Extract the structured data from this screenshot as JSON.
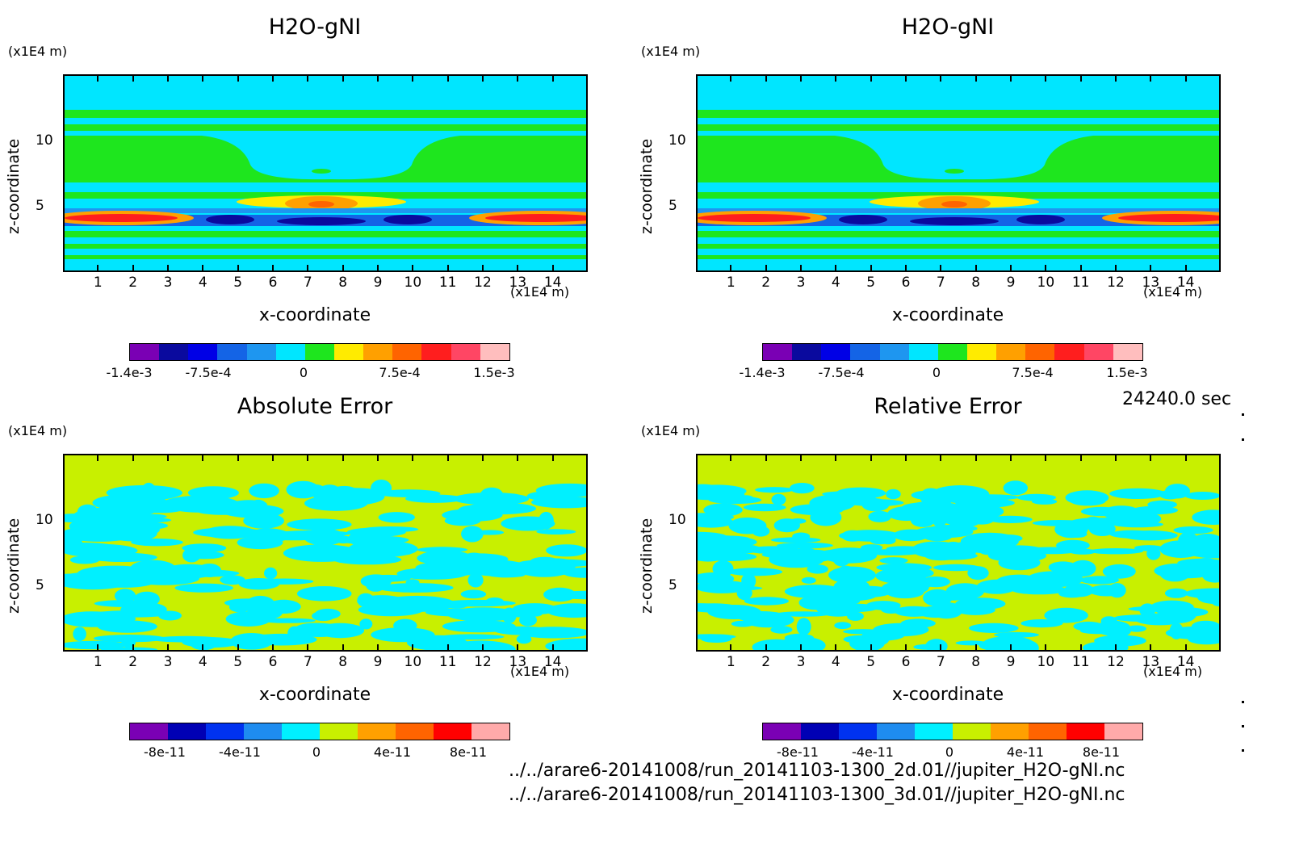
{
  "panels": [
    {
      "id": "h2o-2d",
      "title": "H2O-gNI",
      "z_unit": "(x1E4 m)",
      "x_unit": "(x1E4 m)",
      "z_label": "z-coordinate",
      "x_label": "x-coordinate",
      "x_ticks": [
        "1",
        "2",
        "3",
        "4",
        "5",
        "6",
        "7",
        "8",
        "9",
        "10",
        "11",
        "12",
        "13",
        "14"
      ],
      "z_ticks": [
        "10",
        "5"
      ],
      "colorbar_labels": [
        "-1.4e-3",
        "-7.5e-4",
        "0",
        "7.5e-4",
        "1.5e-3"
      ],
      "colorbar_colors": [
        "#7a00b4",
        "#0a0a9e",
        "#0000e6",
        "#1464e6",
        "#1e96f0",
        "#00e6ff",
        "#1ee61e",
        "#ffeb00",
        "#ffa000",
        "#ff6400",
        "#ff1e1e",
        "#ff4664",
        "#ffbebe"
      ],
      "style": "field"
    },
    {
      "id": "h2o-3d",
      "title": "H2O-gNI",
      "z_unit": "(x1E4 m)",
      "x_unit": "(x1E4 m)",
      "z_label": "z-coordinate",
      "x_label": "x-coordinate",
      "x_ticks": [
        "1",
        "2",
        "3",
        "4",
        "5",
        "6",
        "7",
        "8",
        "9",
        "10",
        "11",
        "12",
        "13",
        "14"
      ],
      "z_ticks": [
        "10",
        "5"
      ],
      "colorbar_labels": [
        "-1.4e-3",
        "-7.5e-4",
        "0",
        "7.5e-4",
        "1.5e-3"
      ],
      "colorbar_colors": [
        "#7a00b4",
        "#0a0a9e",
        "#0000e6",
        "#1464e6",
        "#1e96f0",
        "#00e6ff",
        "#1ee61e",
        "#ffeb00",
        "#ffa000",
        "#ff6400",
        "#ff1e1e",
        "#ff4664",
        "#ffbebe"
      ],
      "style": "field"
    },
    {
      "id": "abs-error",
      "title": "Absolute Error",
      "z_unit": "(x1E4 m)",
      "x_unit": "(x1E4 m)",
      "z_label": "z-coordinate",
      "x_label": "x-coordinate",
      "x_ticks": [
        "1",
        "2",
        "3",
        "4",
        "5",
        "6",
        "7",
        "8",
        "9",
        "10",
        "11",
        "12",
        "13",
        "14"
      ],
      "z_ticks": [
        "10",
        "5"
      ],
      "colorbar_labels": [
        "-8e-11",
        "-4e-11",
        "0",
        "4e-11",
        "8e-11"
      ],
      "colorbar_colors": [
        "#7a00b4",
        "#0000b4",
        "#0032f0",
        "#1e8cf0",
        "#00f0ff",
        "#c8f000",
        "#ffa000",
        "#ff6400",
        "#ff0000",
        "#ffaaaa"
      ],
      "style": "noise"
    },
    {
      "id": "rel-error",
      "title": "Relative Error",
      "z_unit": "(x1E4 m)",
      "x_unit": "(x1E4 m)",
      "z_label": "z-coordinate",
      "x_label": "x-coordinate",
      "x_ticks": [
        "1",
        "2",
        "3",
        "4",
        "5",
        "6",
        "7",
        "8",
        "9",
        "10",
        "11",
        "12",
        "13",
        "14"
      ],
      "z_ticks": [
        "10",
        "5"
      ],
      "colorbar_labels": [
        "-8e-11",
        "-4e-11",
        "0",
        "4e-11",
        "8e-11"
      ],
      "colorbar_colors": [
        "#7a00b4",
        "#0000b4",
        "#0032f0",
        "#1e8cf0",
        "#00f0ff",
        "#c8f000",
        "#ffa000",
        "#ff6400",
        "#ff0000",
        "#ffaaaa"
      ],
      "style": "noise"
    }
  ],
  "time_label": "24240.0 sec",
  "file_paths": [
    "../../arare6-20141008/run_20141103-1300_2d.01//jupiter_H2O-gNI.nc",
    "../../arare6-20141008/run_20141103-1300_3d.01//jupiter_H2O-gNI.nc"
  ],
  "chart_data": [
    {
      "type": "heatmap",
      "title": "H2O-gNI",
      "xlabel": "x-coordinate",
      "ylabel": "z-coordinate",
      "xlim": [
        0,
        15
      ],
      "ylim": [
        0,
        15
      ],
      "colorbar_ticks": [
        -0.0014,
        -0.00075,
        0,
        0.00075,
        0.0015
      ]
    },
    {
      "type": "heatmap",
      "title": "H2O-gNI",
      "xlabel": "x-coordinate",
      "ylabel": "z-coordinate",
      "xlim": [
        0,
        15
      ],
      "ylim": [
        0,
        15
      ],
      "colorbar_ticks": [
        -0.0014,
        -0.00075,
        0,
        0.00075,
        0.0015
      ]
    },
    {
      "type": "heatmap",
      "title": "Absolute Error",
      "xlabel": "x-coordinate",
      "ylabel": "z-coordinate",
      "xlim": [
        0,
        15
      ],
      "ylim": [
        0,
        15
      ],
      "colorbar_ticks": [
        -8e-11,
        -4e-11,
        0,
        4e-11,
        8e-11
      ]
    },
    {
      "type": "heatmap",
      "title": "Relative Error",
      "xlabel": "x-coordinate",
      "ylabel": "z-coordinate",
      "xlim": [
        0,
        15
      ],
      "ylim": [
        0,
        15
      ],
      "colorbar_ticks": [
        -8e-11,
        -4e-11,
        0,
        4e-11,
        8e-11
      ]
    }
  ]
}
